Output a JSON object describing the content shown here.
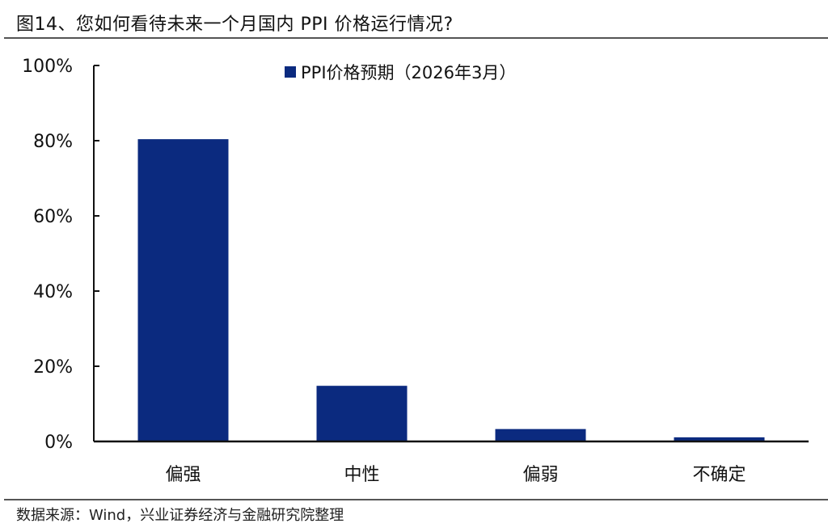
{
  "header": {
    "title": "图14、您如何看待未来一个月国内 PPI 价格运行情况?"
  },
  "footer": {
    "source": "数据来源：Wind，兴业证券经济与金融研究院整理"
  },
  "legend": {
    "label": "PPI价格预期（2026年3月）"
  },
  "colors": {
    "bar": "#0b2a7f",
    "axis": "#111111"
  },
  "yticks": [
    "0%",
    "20%",
    "40%",
    "60%",
    "80%",
    "100%"
  ],
  "chart_data": {
    "type": "bar",
    "title": "您如何看待未来一个月国内 PPI 价格运行情况?",
    "categories": [
      "偏强",
      "中性",
      "偏弱",
      "不确定"
    ],
    "series": [
      {
        "name": "PPI价格预期（2026年3月）",
        "values": [
          80.4,
          14.8,
          3.3,
          1.1
        ]
      }
    ],
    "xlabel": "",
    "ylabel": "",
    "ylim": [
      0,
      100
    ],
    "y_tick_format": "percent",
    "grid": false,
    "legend_position": "top-center"
  }
}
